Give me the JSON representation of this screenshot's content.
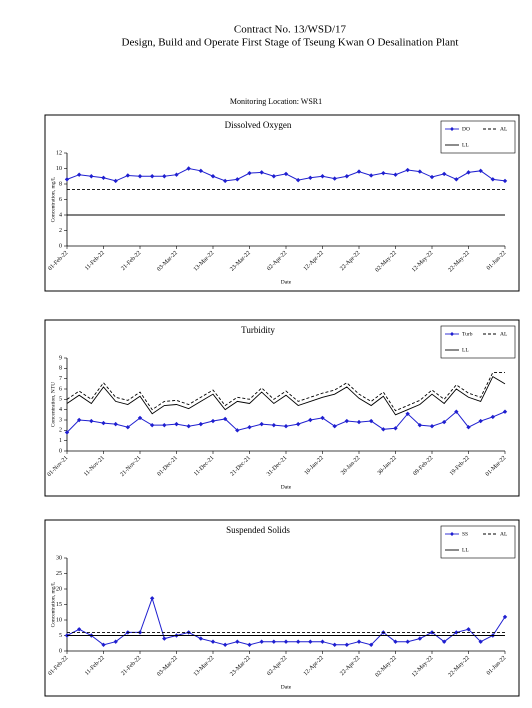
{
  "header": {
    "contract": "Contract No. 13/WSD/17",
    "project": "Design, Build and Operate First Stage of Tseung Kwan O Desalination Plant",
    "location": "Monitoring Location: WSR1"
  },
  "chart_data": [
    {
      "type": "line",
      "title": "Dissolved Oxygen",
      "y_label": "Concentration, mg/L",
      "x_label": "Date",
      "categories": [
        "01-Feb-22",
        null,
        null,
        "11-Feb-22",
        null,
        null,
        "21-Feb-22",
        null,
        null,
        "03-Mar-22",
        null,
        null,
        "13-Mar-22",
        null,
        null,
        "23-Mar-22",
        null,
        null,
        "02-Apr-22",
        null,
        null,
        "12-Apr-22",
        null,
        null,
        "22-Apr-22",
        null,
        null,
        "02-May-22",
        null,
        null,
        "12-May-22",
        null,
        null,
        "22-May-22",
        null,
        null,
        "01-Jun-22"
      ],
      "ylim": [
        0,
        12
      ],
      "yticks": [
        0,
        2,
        4,
        6,
        8,
        10,
        12
      ],
      "series": [
        {
          "name": "DO",
          "color": "#1f1fd0",
          "marker": "diamond",
          "values": [
            8.6,
            9.2,
            9.0,
            8.8,
            8.4,
            9.1,
            9.0,
            9.0,
            9.0,
            9.2,
            10.0,
            9.7,
            9.0,
            8.4,
            8.6,
            9.4,
            9.5,
            9.0,
            9.3,
            8.5,
            8.8,
            9.0,
            8.7,
            9.0,
            9.6,
            9.1,
            9.4,
            9.2,
            9.8,
            9.6,
            8.9,
            9.3,
            8.6,
            9.5,
            9.7,
            8.6,
            8.4
          ]
        },
        {
          "name": "AL",
          "color": "#000000",
          "dash": "dashed",
          "values": [
            7.3,
            7.3,
            7.3,
            7.3,
            7.3,
            7.3,
            7.3,
            7.3,
            7.3,
            7.3,
            7.3,
            7.3,
            7.3,
            7.3,
            7.3,
            7.3,
            7.3,
            7.3,
            7.3,
            7.3,
            7.3,
            7.3,
            7.3,
            7.3,
            7.3,
            7.3,
            7.3,
            7.3,
            7.3,
            7.3,
            7.3,
            7.3,
            7.3,
            7.3,
            7.3,
            7.3,
            7.3
          ]
        },
        {
          "name": "LL",
          "color": "#000000",
          "values": [
            4,
            4,
            4,
            4,
            4,
            4,
            4,
            4,
            4,
            4,
            4,
            4,
            4,
            4,
            4,
            4,
            4,
            4,
            4,
            4,
            4,
            4,
            4,
            4,
            4,
            4,
            4,
            4,
            4,
            4,
            4,
            4,
            4,
            4,
            4,
            4,
            4
          ]
        }
      ]
    },
    {
      "type": "line",
      "title": "Turbidity",
      "y_label": "Concentration, NTU",
      "x_label": "Date",
      "categories": [
        "01-Nov-21",
        null,
        null,
        "11-Nov-21",
        null,
        null,
        "21-Nov-21",
        null,
        null,
        "01-Dec-21",
        null,
        null,
        "11-Dec-21",
        null,
        null,
        "21-Dec-21",
        null,
        null,
        "31-Dec-21",
        null,
        null,
        "10-Jan-22",
        null,
        null,
        "20-Jan-22",
        null,
        null,
        "30-Jan-22",
        null,
        null,
        "09-Feb-22",
        null,
        null,
        "19-Feb-22",
        null,
        null,
        "01-Mar-22"
      ],
      "ylim": [
        0,
        9
      ],
      "yticks": [
        0,
        1,
        2,
        3,
        4,
        5,
        6,
        7,
        8,
        9
      ],
      "series": [
        {
          "name": "Turb",
          "color": "#1f1fd0",
          "marker": "diamond",
          "values": [
            1.8,
            3.0,
            2.9,
            2.7,
            2.6,
            2.3,
            3.2,
            2.5,
            2.5,
            2.6,
            2.4,
            2.6,
            2.9,
            3.1,
            2.0,
            2.3,
            2.6,
            2.5,
            2.4,
            2.6,
            3.0,
            3.2,
            2.4,
            2.9,
            2.8,
            2.9,
            2.1,
            2.2,
            3.6,
            2.5,
            2.4,
            2.8,
            3.8,
            2.3,
            2.9,
            3.3,
            3.8
          ]
        },
        {
          "name": "AL",
          "color": "#000000",
          "dash": "dashed",
          "values": [
            5.0,
            5.8,
            5.0,
            6.6,
            5.2,
            4.9,
            5.7,
            4.0,
            4.8,
            4.9,
            4.5,
            5.2,
            5.9,
            4.4,
            5.2,
            5.0,
            6.1,
            5.0,
            5.8,
            4.8,
            5.2,
            5.6,
            5.9,
            6.6,
            5.5,
            4.8,
            5.7,
            3.9,
            4.4,
            4.9,
            5.9,
            5.0,
            6.4,
            5.6,
            5.2,
            7.6,
            7.6
          ]
        },
        {
          "name": "LL",
          "color": "#000000",
          "values": [
            4.6,
            5.4,
            4.6,
            6.2,
            4.8,
            4.5,
            5.3,
            3.6,
            4.4,
            4.5,
            4.1,
            4.8,
            5.5,
            4.0,
            4.8,
            4.6,
            5.7,
            4.6,
            5.4,
            4.4,
            4.8,
            5.2,
            5.5,
            6.2,
            5.1,
            4.4,
            5.3,
            3.5,
            4.0,
            4.5,
            5.5,
            4.6,
            6.0,
            5.2,
            4.8,
            7.2,
            6.5
          ]
        }
      ]
    },
    {
      "type": "line",
      "title": "Suspended Solids",
      "y_label": "Concentration, mg/L",
      "x_label": "Date",
      "categories": [
        "01-Feb-22",
        null,
        null,
        "11-Feb-22",
        null,
        null,
        "21-Feb-22",
        null,
        null,
        "03-Mar-22",
        null,
        null,
        "13-Mar-22",
        null,
        null,
        "23-Mar-22",
        null,
        null,
        "02-Apr-22",
        null,
        null,
        "12-Apr-22",
        null,
        null,
        "22-Apr-22",
        null,
        null,
        "02-May-22",
        null,
        null,
        "12-May-22",
        null,
        null,
        "22-May-22",
        null,
        null,
        "01-Jun-22"
      ],
      "ylim": [
        0,
        30
      ],
      "yticks": [
        0,
        5,
        10,
        15,
        20,
        25,
        30
      ],
      "series": [
        {
          "name": "SS",
          "color": "#1f1fd0",
          "marker": "diamond",
          "values": [
            5,
            7,
            5,
            2,
            3,
            6,
            6,
            17,
            4,
            5,
            6,
            4,
            3,
            2,
            3,
            2,
            3,
            3,
            3,
            3,
            3,
            3,
            2,
            2,
            3,
            2,
            6,
            3,
            3,
            4,
            6,
            3,
            6,
            7,
            3,
            5,
            11
          ]
        },
        {
          "name": "AL",
          "color": "#000000",
          "dash": "dashed",
          "values": [
            6,
            6,
            6,
            6,
            6,
            6,
            6,
            6,
            6,
            6,
            6,
            6,
            6,
            6,
            6,
            6,
            6,
            6,
            6,
            6,
            6,
            6,
            6,
            6,
            6,
            6,
            6,
            6,
            6,
            6,
            6,
            6,
            6,
            6,
            6,
            6,
            6
          ]
        },
        {
          "name": "LL",
          "color": "#000000",
          "values": [
            5,
            5,
            5,
            5,
            5,
            5,
            5,
            5,
            5,
            5,
            5,
            5,
            5,
            5,
            5,
            5,
            5,
            5,
            5,
            5,
            5,
            5,
            5,
            5,
            5,
            5,
            5,
            5,
            5,
            5,
            5,
            5,
            5,
            5,
            5,
            5,
            5
          ]
        }
      ]
    }
  ]
}
